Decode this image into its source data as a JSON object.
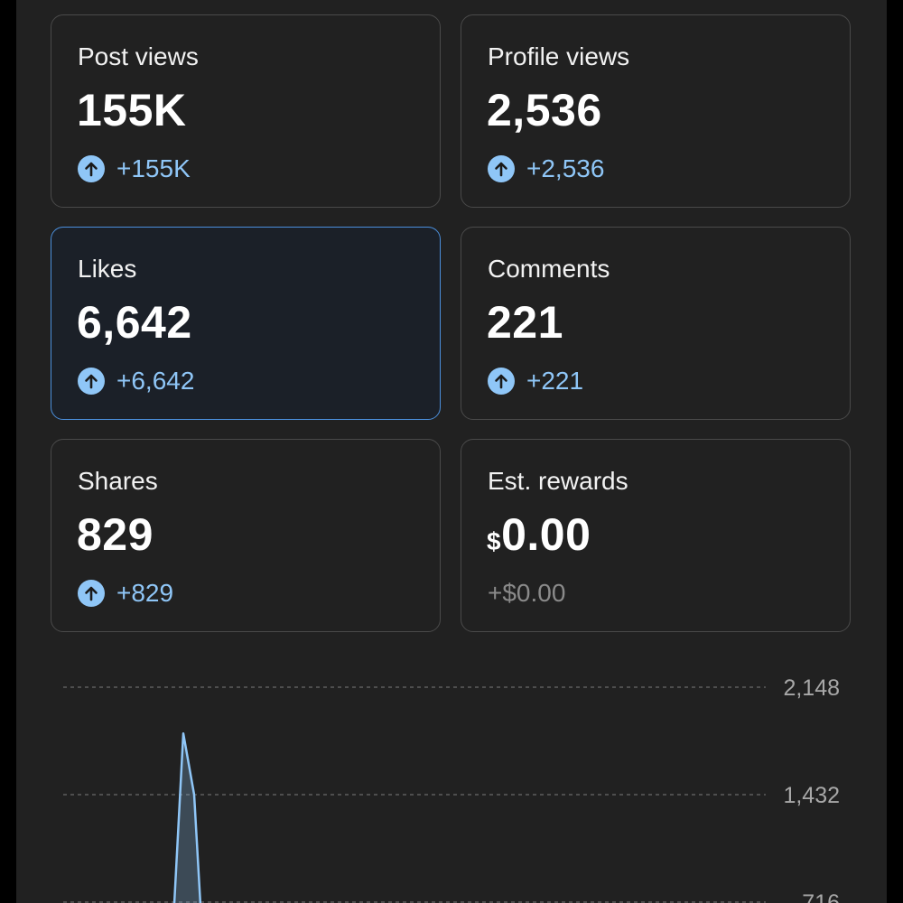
{
  "cards": [
    {
      "label": "Post views",
      "value": "155K",
      "currency": "",
      "change": "+155K",
      "trend": "up",
      "selected": false
    },
    {
      "label": "Profile views",
      "value": "2,536",
      "currency": "",
      "change": "+2,536",
      "trend": "up",
      "selected": false
    },
    {
      "label": "Likes",
      "value": "6,642",
      "currency": "",
      "change": "+6,642",
      "trend": "up",
      "selected": true
    },
    {
      "label": "Comments",
      "value": "221",
      "currency": "",
      "change": "+221",
      "trend": "up",
      "selected": false
    },
    {
      "label": "Shares",
      "value": "829",
      "currency": "",
      "change": "+829",
      "trend": "up",
      "selected": false
    },
    {
      "label": "Est. rewards",
      "value": "0.00",
      "currency": "$",
      "change": "+$0.00",
      "trend": "none",
      "selected": false
    }
  ],
  "icons": {
    "trend_up": "arrow-up-circle-icon"
  },
  "colors": {
    "accent": "#8fc6f7",
    "selected_border": "#4b8fdc",
    "background": "#212121",
    "muted": "#8a8a8a"
  },
  "chart_data": {
    "type": "line",
    "y_ticks": [
      "2,148",
      "1,432",
      "716"
    ],
    "y_tick_values": [
      2148,
      1432,
      716
    ],
    "grid": "dashed",
    "series": [
      {
        "x": [
          0,
          1,
          2,
          3
        ],
        "values": [
          0,
          1840,
          1432,
          0
        ]
      }
    ],
    "line_color": "#8fc6f7"
  }
}
